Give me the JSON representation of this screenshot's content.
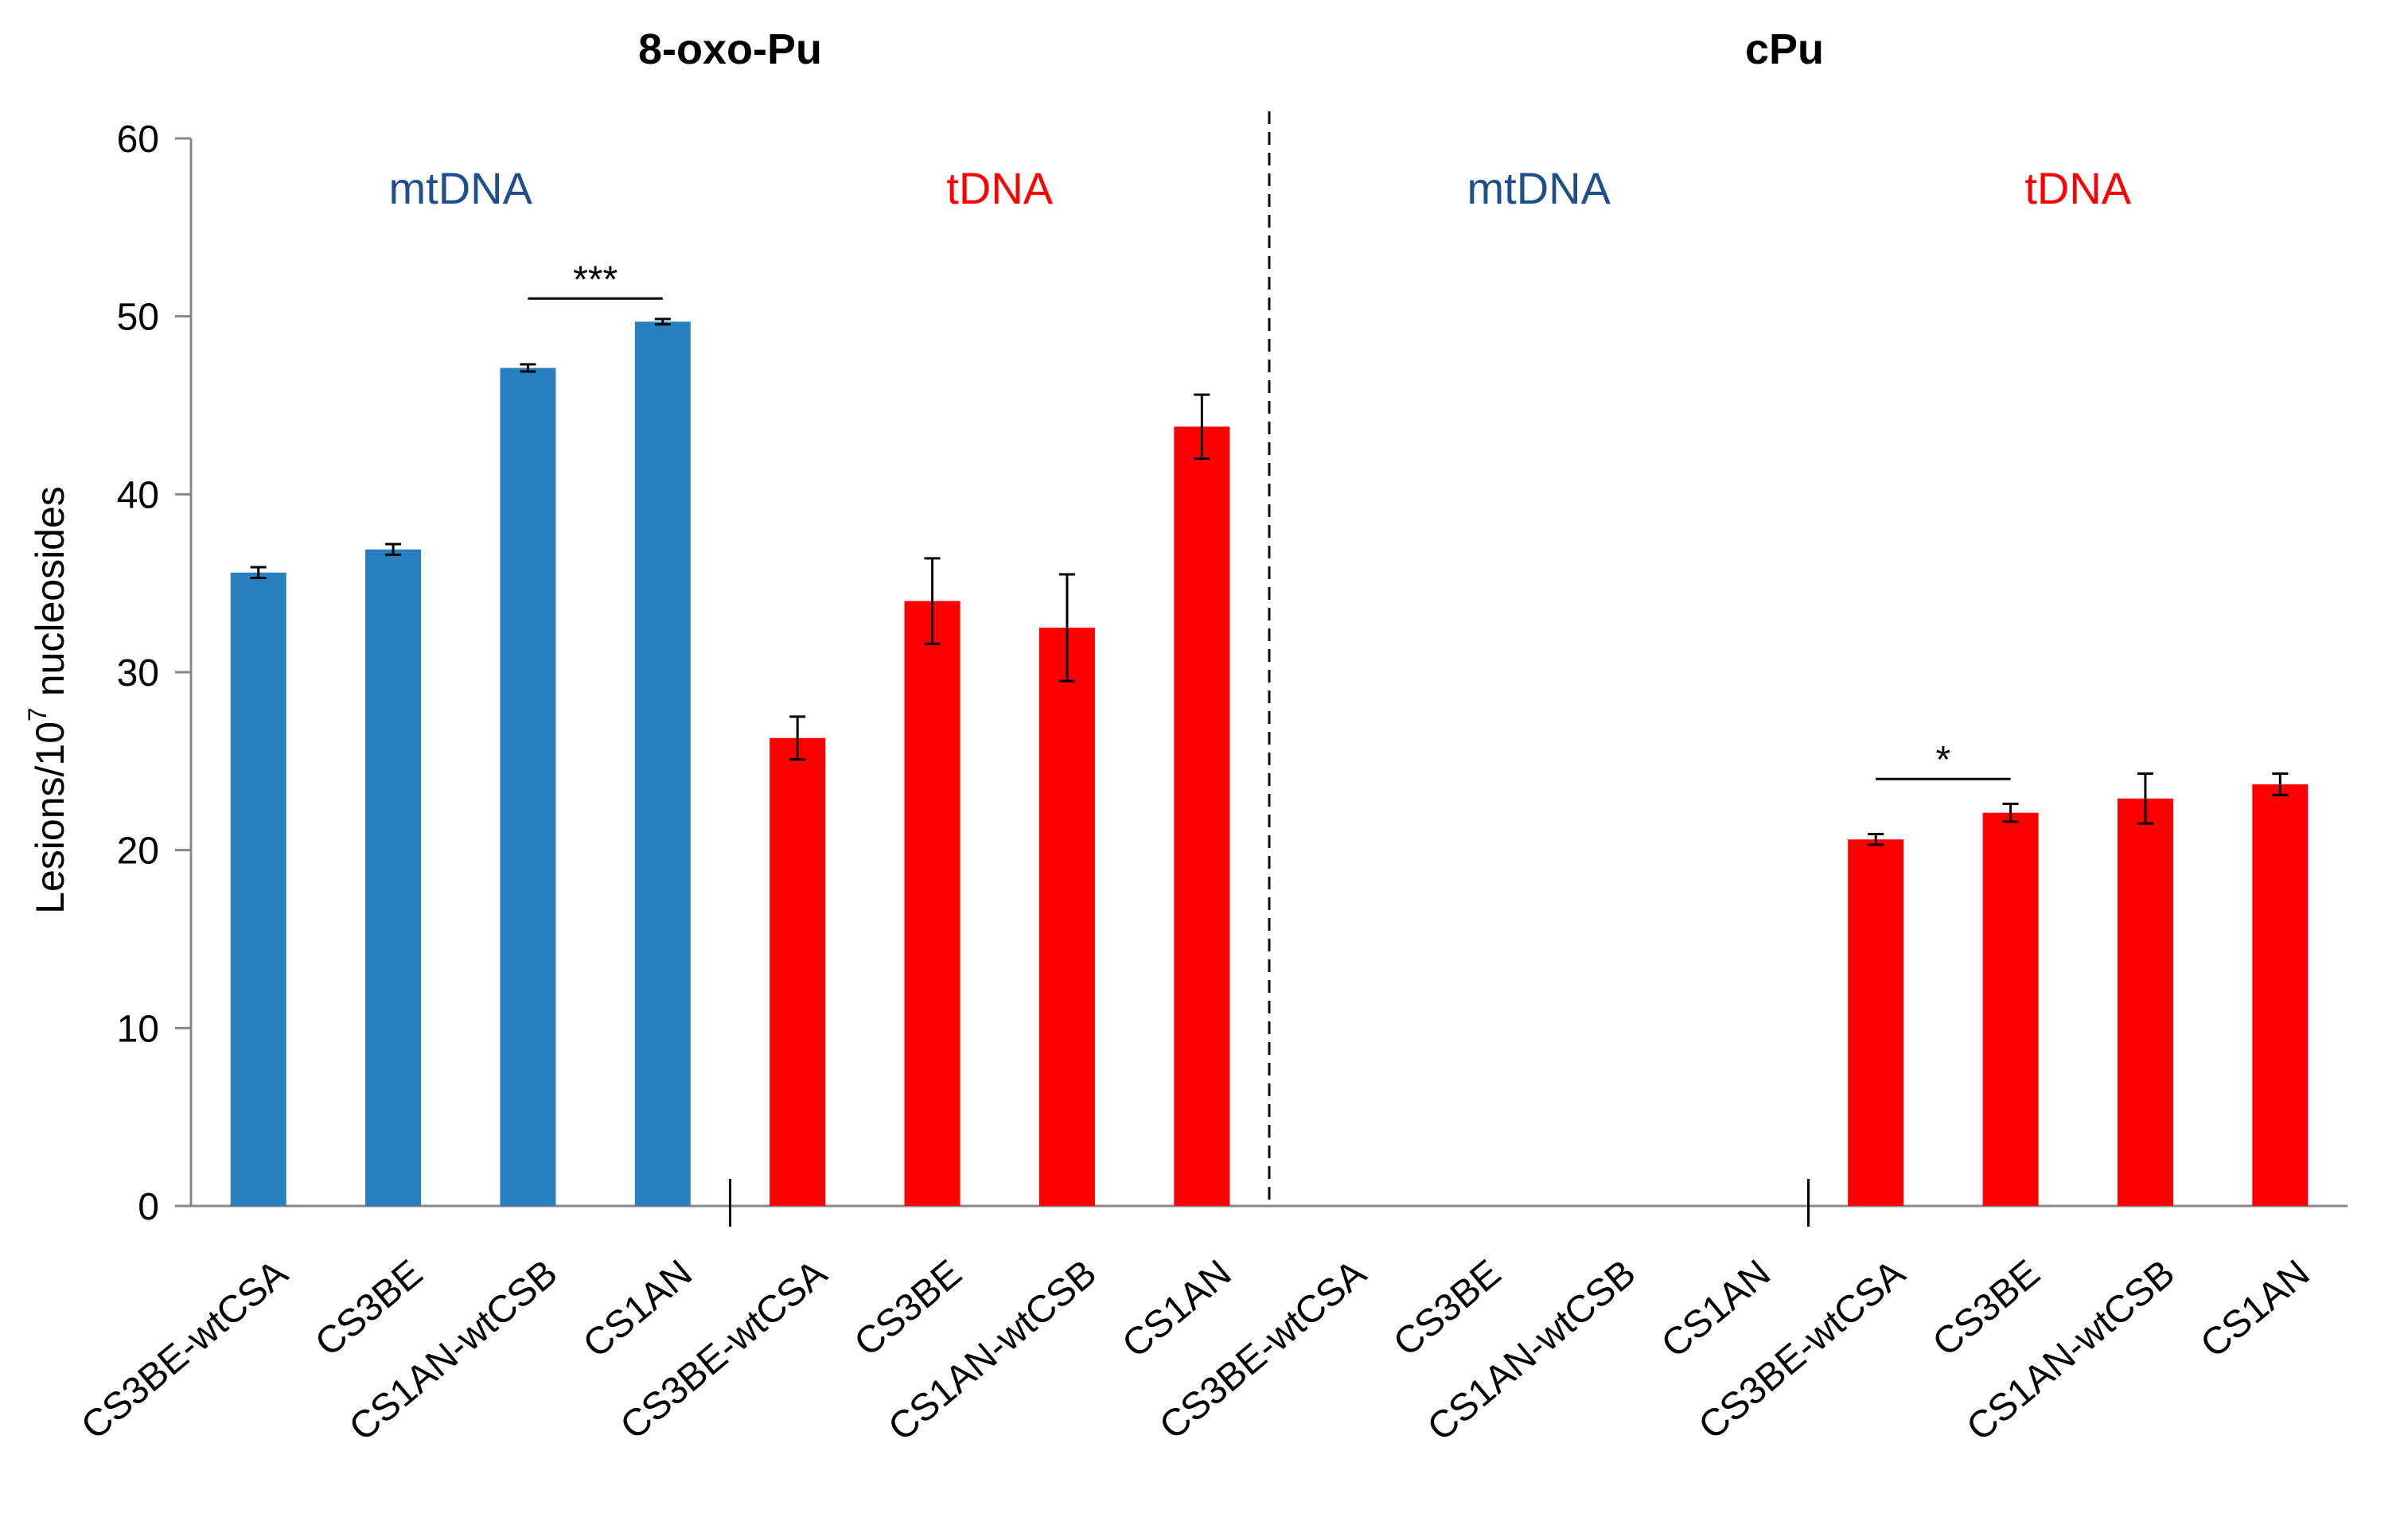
{
  "chart_data": {
    "type": "bar",
    "ylabel": "Lesions/10",
    "ylabel_superscript": "7",
    "ylabel_suffix": " nucleosides",
    "ylim": [
      0,
      60
    ],
    "yticks": [
      "0",
      "10",
      "20",
      "30",
      "40",
      "50",
      "60"
    ],
    "grid": false,
    "colors": {
      "mtDNA": "#2880c0",
      "tDNA": "#ff0000",
      "axis": "#888888"
    },
    "panels": [
      {
        "title": "8-oxo-Pu",
        "groups": [
          {
            "label": "mtDNA",
            "label_color": "#1f4e8c",
            "bar_color": "#2880c0",
            "categories": [
              "CS3BE-wtCSA",
              "CS3BE",
              "CS1AN-wtCSB",
              "CS1AN"
            ],
            "values": [
              35.6,
              36.9,
              47.1,
              49.7
            ],
            "errors": [
              0.3,
              0.3,
              0.2,
              0.15
            ]
          },
          {
            "label": "tDNA",
            "label_color": "#ff0000",
            "bar_color": "#ff0000",
            "categories": [
              "CS3BE-wtCSA",
              "CS3BE",
              "CS1AN-wtCSB",
              "CS1AN"
            ],
            "values": [
              26.3,
              34.0,
              32.5,
              43.8
            ],
            "errors": [
              1.2,
              2.4,
              3.0,
              1.8
            ]
          }
        ],
        "significance": [
          {
            "label": "***",
            "group": 0,
            "from": 2,
            "to": 3,
            "y": 51.0
          }
        ]
      },
      {
        "title": "cPu",
        "groups": [
          {
            "label": "mtDNA",
            "label_color": "#1f4e8c",
            "bar_color": "#2880c0",
            "categories": [
              "CS3BE-wtCSA",
              "CS3BE",
              "CS1AN-wtCSB",
              "CS1AN"
            ],
            "values": [
              0,
              0,
              0,
              0
            ],
            "errors": [
              0,
              0,
              0,
              0
            ]
          },
          {
            "label": "tDNA",
            "label_color": "#ff0000",
            "bar_color": "#ff0000",
            "categories": [
              "CS3BE-wtCSA",
              "CS3BE",
              "CS1AN-wtCSB",
              "CS1AN"
            ],
            "values": [
              20.6,
              22.1,
              22.9,
              23.7
            ],
            "errors": [
              0.3,
              0.5,
              1.4,
              0.6
            ]
          }
        ],
        "significance": [
          {
            "label": "*",
            "group": 1,
            "from": 0,
            "to": 1,
            "y": 24.0
          }
        ]
      }
    ]
  }
}
